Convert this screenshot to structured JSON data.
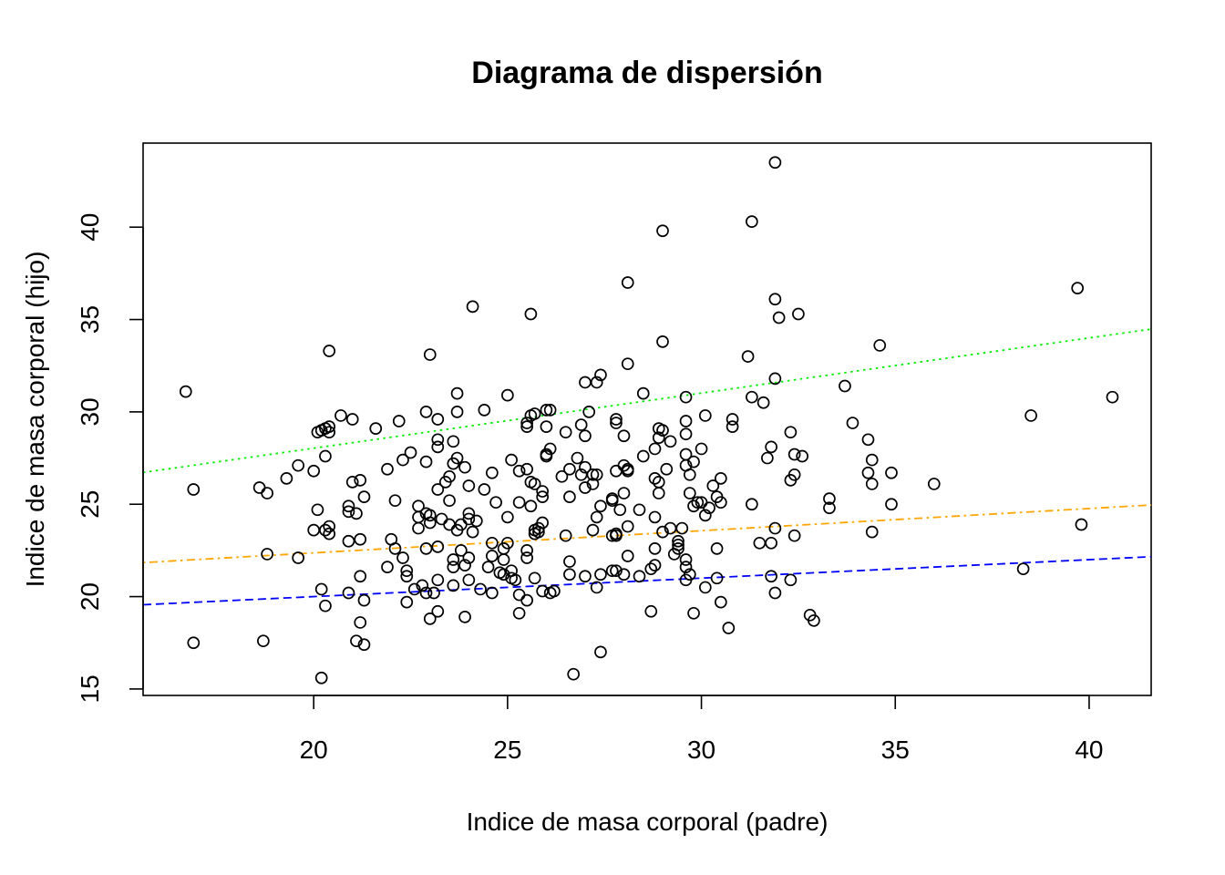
{
  "chart_data": {
    "type": "scatter",
    "title": "Diagrama de dispersión",
    "xlabel": "Indice de masa corporal (padre)",
    "ylabel": "Indice de masa corporal (hijo)",
    "xlim": [
      15.6,
      41.6
    ],
    "ylim": [
      14.65,
      44.55
    ],
    "xticks": [
      20,
      25,
      30,
      35,
      40
    ],
    "yticks": [
      15,
      20,
      25,
      30,
      35,
      40
    ],
    "grid": false,
    "legend": "none",
    "points": [
      [
        16.7,
        31.1
      ],
      [
        16.9,
        25.8
      ],
      [
        16.9,
        17.5
      ],
      [
        18.6,
        25.9
      ],
      [
        18.7,
        17.6
      ],
      [
        18.8,
        25.6
      ],
      [
        18.8,
        22.3
      ],
      [
        19.3,
        26.4
      ],
      [
        19.6,
        27.1
      ],
      [
        19.6,
        22.1
      ],
      [
        20.0,
        26.8
      ],
      [
        20.0,
        23.6
      ],
      [
        20.1,
        24.7
      ],
      [
        20.1,
        28.9
      ],
      [
        20.2,
        29.0
      ],
      [
        20.2,
        20.4
      ],
      [
        20.2,
        15.6
      ],
      [
        20.3,
        29.1
      ],
      [
        20.3,
        27.6
      ],
      [
        20.3,
        23.6
      ],
      [
        20.3,
        19.5
      ],
      [
        20.4,
        33.3
      ],
      [
        20.4,
        29.2
      ],
      [
        20.4,
        28.9
      ],
      [
        20.4,
        23.8
      ],
      [
        20.4,
        23.4
      ],
      [
        20.7,
        29.8
      ],
      [
        20.9,
        24.9
      ],
      [
        20.9,
        24.6
      ],
      [
        20.9,
        23.0
      ],
      [
        20.9,
        20.2
      ],
      [
        21.0,
        29.6
      ],
      [
        21.0,
        26.2
      ],
      [
        21.1,
        24.5
      ],
      [
        21.1,
        17.6
      ],
      [
        21.2,
        26.3
      ],
      [
        21.2,
        21.1
      ],
      [
        21.2,
        18.6
      ],
      [
        21.2,
        23.1
      ],
      [
        21.3,
        25.4
      ],
      [
        21.3,
        19.8
      ],
      [
        21.3,
        17.4
      ],
      [
        21.6,
        29.1
      ],
      [
        21.9,
        26.9
      ],
      [
        21.9,
        21.6
      ],
      [
        22.0,
        23.1
      ],
      [
        22.1,
        22.6
      ],
      [
        22.1,
        25.2
      ],
      [
        22.2,
        29.5
      ],
      [
        22.3,
        27.4
      ],
      [
        22.3,
        22.1
      ],
      [
        22.4,
        21.4
      ],
      [
        22.4,
        21.1
      ],
      [
        22.4,
        19.7
      ],
      [
        22.5,
        27.8
      ],
      [
        22.6,
        20.4
      ],
      [
        22.7,
        24.9
      ],
      [
        22.7,
        24.3
      ],
      [
        22.7,
        23.7
      ],
      [
        22.8,
        20.6
      ],
      [
        22.9,
        30.0
      ],
      [
        22.9,
        27.3
      ],
      [
        22.9,
        24.5
      ],
      [
        22.9,
        22.6
      ],
      [
        22.9,
        20.2
      ],
      [
        23.0,
        33.1
      ],
      [
        23.0,
        24.4
      ],
      [
        23.0,
        24.0
      ],
      [
        23.0,
        18.8
      ],
      [
        23.1,
        20.2
      ],
      [
        23.2,
        29.6
      ],
      [
        23.2,
        28.5
      ],
      [
        23.2,
        28.1
      ],
      [
        23.2,
        25.8
      ],
      [
        23.2,
        22.7
      ],
      [
        23.2,
        20.9
      ],
      [
        23.2,
        19.2
      ],
      [
        23.3,
        24.2
      ],
      [
        23.4,
        26.2
      ],
      [
        23.5,
        26.5
      ],
      [
        23.5,
        25.2
      ],
      [
        23.5,
        23.9
      ],
      [
        23.6,
        28.4
      ],
      [
        23.6,
        27.2
      ],
      [
        23.6,
        22.0
      ],
      [
        23.6,
        21.6
      ],
      [
        23.6,
        20.6
      ],
      [
        23.7,
        31.0
      ],
      [
        23.7,
        30.0
      ],
      [
        23.7,
        27.5
      ],
      [
        23.7,
        23.6
      ],
      [
        23.8,
        23.9
      ],
      [
        23.8,
        22.5
      ],
      [
        23.9,
        27.0
      ],
      [
        23.9,
        21.7
      ],
      [
        23.9,
        18.9
      ],
      [
        24.0,
        26.0
      ],
      [
        24.0,
        24.5
      ],
      [
        24.0,
        24.2
      ],
      [
        24.0,
        22.1
      ],
      [
        24.0,
        20.9
      ],
      [
        24.1,
        35.7
      ],
      [
        24.1,
        23.5
      ],
      [
        24.2,
        24.1
      ],
      [
        24.3,
        20.4
      ],
      [
        24.4,
        30.1
      ],
      [
        24.4,
        25.8
      ],
      [
        24.5,
        21.6
      ],
      [
        24.6,
        26.7
      ],
      [
        24.6,
        22.9
      ],
      [
        24.6,
        22.2
      ],
      [
        24.6,
        20.2
      ],
      [
        24.7,
        25.1
      ],
      [
        24.8,
        21.3
      ],
      [
        24.9,
        22.6
      ],
      [
        24.9,
        22.0
      ],
      [
        24.9,
        21.2
      ],
      [
        25.0,
        30.9
      ],
      [
        25.0,
        24.3
      ],
      [
        25.0,
        22.9
      ],
      [
        25.1,
        27.4
      ],
      [
        25.1,
        21.4
      ],
      [
        25.1,
        21.0
      ],
      [
        25.2,
        20.9
      ],
      [
        25.3,
        26.8
      ],
      [
        25.3,
        25.1
      ],
      [
        25.3,
        20.1
      ],
      [
        25.3,
        19.1
      ],
      [
        25.5,
        29.4
      ],
      [
        25.5,
        29.2
      ],
      [
        25.5,
        26.9
      ],
      [
        25.5,
        22.5
      ],
      [
        25.5,
        22.1
      ],
      [
        25.5,
        19.8
      ],
      [
        25.6,
        35.3
      ],
      [
        25.6,
        29.8
      ],
      [
        25.6,
        26.2
      ],
      [
        25.6,
        24.9
      ],
      [
        25.7,
        29.9
      ],
      [
        25.7,
        26.1
      ],
      [
        25.7,
        23.6
      ],
      [
        25.7,
        23.4
      ],
      [
        25.7,
        21.0
      ],
      [
        25.8,
        23.7
      ],
      [
        25.8,
        23.5
      ],
      [
        25.9,
        25.7
      ],
      [
        25.9,
        25.4
      ],
      [
        25.9,
        24.0
      ],
      [
        25.9,
        20.3
      ],
      [
        26.0,
        30.1
      ],
      [
        26.0,
        29.2
      ],
      [
        26.0,
        27.7
      ],
      [
        26.0,
        27.6
      ],
      [
        26.1,
        30.1
      ],
      [
        26.1,
        28.0
      ],
      [
        26.1,
        20.2
      ],
      [
        26.2,
        20.3
      ],
      [
        26.4,
        26.5
      ],
      [
        26.5,
        23.3
      ],
      [
        26.5,
        28.9
      ],
      [
        26.6,
        26.9
      ],
      [
        26.6,
        25.4
      ],
      [
        26.6,
        21.9
      ],
      [
        26.6,
        21.2
      ],
      [
        26.7,
        15.8
      ],
      [
        26.8,
        27.5
      ],
      [
        26.9,
        29.3
      ],
      [
        26.9,
        26.6
      ],
      [
        27.0,
        31.6
      ],
      [
        27.0,
        28.7
      ],
      [
        27.0,
        27.0
      ],
      [
        27.0,
        25.9
      ],
      [
        27.0,
        21.1
      ],
      [
        27.1,
        30.0
      ],
      [
        27.2,
        26.6
      ],
      [
        27.2,
        26.1
      ],
      [
        27.2,
        23.6
      ],
      [
        27.3,
        31.6
      ],
      [
        27.3,
        26.6
      ],
      [
        27.3,
        24.3
      ],
      [
        27.3,
        20.5
      ],
      [
        27.4,
        32.0
      ],
      [
        27.4,
        24.9
      ],
      [
        27.4,
        21.2
      ],
      [
        27.4,
        17.0
      ],
      [
        27.7,
        25.3
      ],
      [
        27.7,
        23.3
      ],
      [
        27.7,
        21.4
      ],
      [
        27.7,
        25.2
      ],
      [
        27.8,
        29.6
      ],
      [
        27.8,
        29.4
      ],
      [
        27.8,
        26.8
      ],
      [
        27.8,
        23.4
      ],
      [
        27.8,
        23.3
      ],
      [
        27.8,
        21.4
      ],
      [
        27.9,
        24.7
      ],
      [
        28.0,
        28.7
      ],
      [
        28.0,
        27.1
      ],
      [
        28.0,
        25.6
      ],
      [
        28.0,
        21.2
      ],
      [
        28.1,
        37.0
      ],
      [
        28.1,
        32.6
      ],
      [
        28.1,
        26.9
      ],
      [
        28.1,
        26.8
      ],
      [
        28.1,
        23.8
      ],
      [
        28.1,
        22.2
      ],
      [
        28.4,
        24.7
      ],
      [
        28.4,
        21.1
      ],
      [
        28.5,
        31.0
      ],
      [
        28.5,
        27.6
      ],
      [
        28.7,
        21.5
      ],
      [
        28.7,
        19.2
      ],
      [
        28.8,
        28.0
      ],
      [
        28.8,
        26.4
      ],
      [
        28.8,
        24.3
      ],
      [
        28.8,
        22.6
      ],
      [
        28.8,
        21.7
      ],
      [
        28.9,
        29.1
      ],
      [
        28.9,
        28.6
      ],
      [
        28.9,
        26.2
      ],
      [
        28.9,
        25.6
      ],
      [
        29.0,
        39.8
      ],
      [
        29.0,
        33.8
      ],
      [
        29.0,
        29.0
      ],
      [
        29.0,
        23.5
      ],
      [
        29.1,
        26.9
      ],
      [
        29.2,
        28.4
      ],
      [
        29.2,
        23.7
      ],
      [
        29.3,
        22.3
      ],
      [
        29.4,
        23.0
      ],
      [
        29.4,
        22.8
      ],
      [
        29.4,
        22.6
      ],
      [
        29.5,
        23.7
      ],
      [
        29.6,
        30.8
      ],
      [
        29.6,
        29.5
      ],
      [
        29.6,
        28.8
      ],
      [
        29.6,
        27.7
      ],
      [
        29.6,
        27.1
      ],
      [
        29.6,
        22.0
      ],
      [
        29.6,
        21.6
      ],
      [
        29.6,
        20.9
      ],
      [
        29.7,
        26.6
      ],
      [
        29.7,
        25.6
      ],
      [
        29.7,
        21.2
      ],
      [
        29.8,
        27.3
      ],
      [
        29.8,
        24.9
      ],
      [
        29.8,
        19.1
      ],
      [
        29.9,
        25.1
      ],
      [
        30.0,
        28.0
      ],
      [
        30.0,
        25.1
      ],
      [
        30.1,
        29.8
      ],
      [
        30.1,
        24.4
      ],
      [
        30.1,
        20.5
      ],
      [
        30.2,
        24.8
      ],
      [
        30.3,
        26.0
      ],
      [
        30.4,
        25.4
      ],
      [
        30.4,
        22.6
      ],
      [
        30.4,
        21.0
      ],
      [
        30.5,
        26.4
      ],
      [
        30.5,
        25.1
      ],
      [
        30.5,
        19.7
      ],
      [
        30.7,
        18.3
      ],
      [
        30.8,
        29.6
      ],
      [
        30.8,
        29.2
      ],
      [
        31.2,
        33.0
      ],
      [
        31.3,
        40.3
      ],
      [
        31.3,
        30.8
      ],
      [
        31.3,
        25.0
      ],
      [
        31.5,
        22.9
      ],
      [
        31.6,
        30.5
      ],
      [
        31.7,
        27.5
      ],
      [
        31.8,
        28.1
      ],
      [
        31.8,
        22.9
      ],
      [
        31.8,
        21.1
      ],
      [
        31.9,
        43.5
      ],
      [
        31.9,
        36.1
      ],
      [
        31.9,
        31.8
      ],
      [
        31.9,
        23.7
      ],
      [
        31.9,
        20.2
      ],
      [
        32.0,
        35.1
      ],
      [
        32.3,
        28.9
      ],
      [
        32.3,
        26.3
      ],
      [
        32.3,
        20.9
      ],
      [
        32.4,
        26.6
      ],
      [
        32.4,
        23.3
      ],
      [
        32.4,
        27.7
      ],
      [
        32.5,
        35.3
      ],
      [
        32.6,
        27.6
      ],
      [
        32.8,
        19.0
      ],
      [
        32.9,
        18.7
      ],
      [
        33.3,
        25.3
      ],
      [
        33.3,
        24.8
      ],
      [
        33.7,
        31.4
      ],
      [
        33.9,
        29.4
      ],
      [
        34.3,
        28.5
      ],
      [
        34.3,
        26.7
      ],
      [
        34.4,
        27.4
      ],
      [
        34.4,
        26.1
      ],
      [
        34.4,
        23.5
      ],
      [
        34.6,
        33.6
      ],
      [
        34.9,
        26.7
      ],
      [
        34.9,
        25.0
      ],
      [
        36.0,
        26.1
      ],
      [
        38.3,
        21.5
      ],
      [
        38.5,
        29.8
      ],
      [
        39.7,
        36.7
      ],
      [
        39.8,
        23.9
      ],
      [
        40.6,
        30.8
      ]
    ],
    "lines": [
      {
        "color": "#00ee00",
        "style": "dotted",
        "x": [
          15.6,
          41.6
        ],
        "y": [
          26.72,
          34.48
        ]
      },
      {
        "color": "#ffa500",
        "style": "dashdot",
        "x": [
          15.6,
          41.6
        ],
        "y": [
          21.84,
          24.96
        ]
      },
      {
        "color": "#0000ff",
        "style": "dashed",
        "x": [
          15.6,
          41.6
        ],
        "y": [
          19.56,
          22.16
        ]
      }
    ]
  }
}
